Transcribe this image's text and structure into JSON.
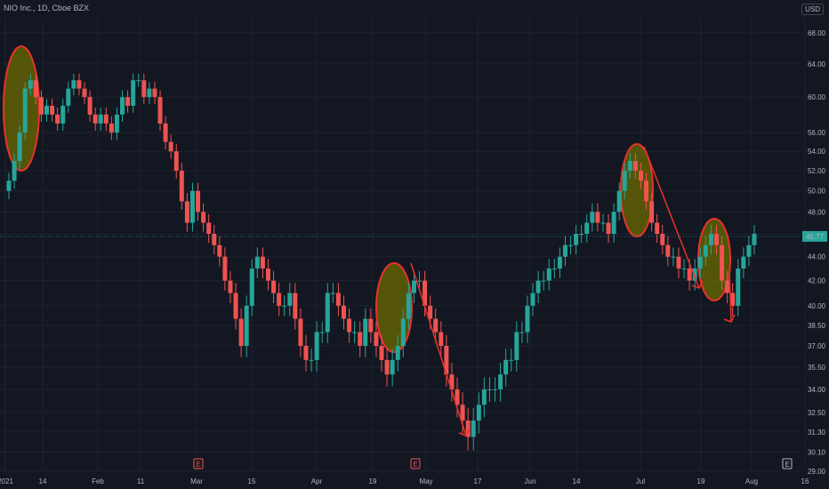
{
  "header": {
    "title": "NIO Inc., 1D, Cboe BZX",
    "currency": "USD"
  },
  "colors": {
    "bg": "#131722",
    "up": "#26a69a",
    "down": "#ef5350",
    "grid": "#1e222d",
    "text": "#b2b5be",
    "highlight": "#6b6b00",
    "annot": "#e8322b"
  },
  "chart_data": {
    "type": "candlestick",
    "title": "NIO Inc., 1D, Cboe BZX",
    "ylim": [
      29,
      70
    ],
    "y_ticks": [
      "29.00",
      "30.10",
      "31.30",
      "32.50",
      "34.00",
      "35.50",
      "37.00",
      "38.50",
      "40.00",
      "42.00",
      "44.00",
      "46.00",
      "48.00",
      "50.00",
      "52.00",
      "54.00",
      "56.00",
      "60.00",
      "64.00",
      "68.00"
    ],
    "x_ticks": [
      "2021",
      "14",
      "Feb",
      "11",
      "Mar",
      "15",
      "Apr",
      "19",
      "May",
      "17",
      "Jun",
      "14",
      "Jul",
      "19",
      "Aug",
      "16"
    ],
    "last_price": "45.77",
    "event_markers": [
      "E",
      "E",
      "E"
    ],
    "closes": [
      51,
      53,
      56,
      61,
      62,
      60,
      58,
      59,
      58,
      57,
      59,
      61,
      62,
      61,
      60,
      58,
      57,
      58,
      57,
      56,
      58,
      60,
      59,
      62,
      62,
      60,
      61,
      60,
      57,
      55,
      54,
      52,
      49,
      47,
      50,
      48,
      47,
      46,
      45,
      44,
      42,
      41,
      39,
      37,
      40,
      43,
      44,
      43,
      42,
      41,
      40,
      40,
      41,
      39,
      37,
      36,
      36,
      38,
      38,
      41,
      41,
      40,
      39,
      38,
      38,
      37,
      39,
      38,
      37,
      36,
      35,
      36,
      37,
      39,
      41,
      42,
      42,
      40,
      39,
      38,
      37,
      35,
      34,
      33,
      32,
      31,
      32,
      33,
      34,
      34,
      34,
      35,
      36,
      36,
      38,
      38,
      40,
      41,
      42,
      42,
      43,
      43,
      44,
      45,
      45,
      46,
      46,
      47,
      48,
      47,
      47,
      46,
      48,
      50,
      52,
      53,
      52,
      51,
      49,
      47,
      46,
      45,
      44,
      44,
      43,
      43,
      42,
      43,
      44,
      45,
      46,
      45,
      42,
      41,
      40,
      43,
      44,
      45,
      46
    ]
  }
}
